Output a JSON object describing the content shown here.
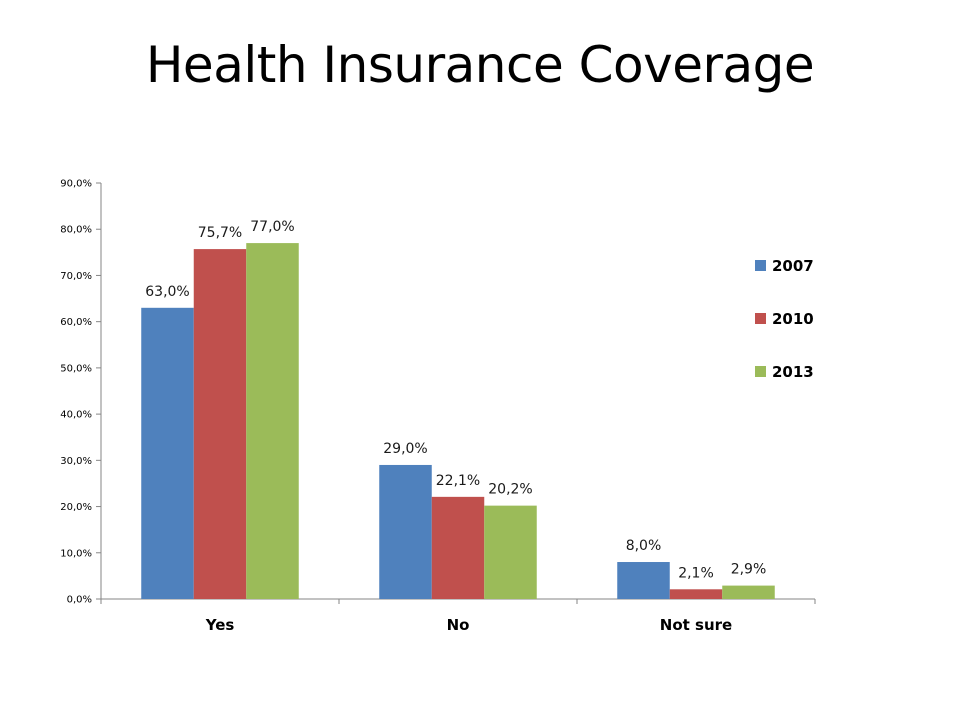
{
  "slide": {
    "title": "Health Insurance Coverage"
  },
  "chart_data": {
    "type": "bar",
    "title": "",
    "xlabel": "",
    "ylabel": "",
    "categories": [
      "Yes",
      "No",
      "Not sure"
    ],
    "ylim": [
      0,
      90
    ],
    "ytick_labels": [
      "0,0%",
      "10,0%",
      "20,0%",
      "30,0%",
      "40,0%",
      "50,0%",
      "60,0%",
      "70,0%",
      "80,0%",
      "90,0%"
    ],
    "grid": false,
    "legend_position": "right",
    "series": [
      {
        "name": "2007",
        "color": "#4F81BD",
        "values": [
          63.0,
          29.0,
          8.0
        ],
        "labels": [
          "63,0%",
          "29,0%",
          "8,0%"
        ]
      },
      {
        "name": "2010",
        "color": "#C0504D",
        "values": [
          75.7,
          22.1,
          2.1
        ],
        "labels": [
          "75,7%",
          "22,1%",
          "2,1%"
        ]
      },
      {
        "name": "2013",
        "color": "#9BBB59",
        "values": [
          77.0,
          20.2,
          2.9
        ],
        "labels": [
          "77,0%",
          "20,2%",
          "2,9%"
        ]
      }
    ]
  }
}
